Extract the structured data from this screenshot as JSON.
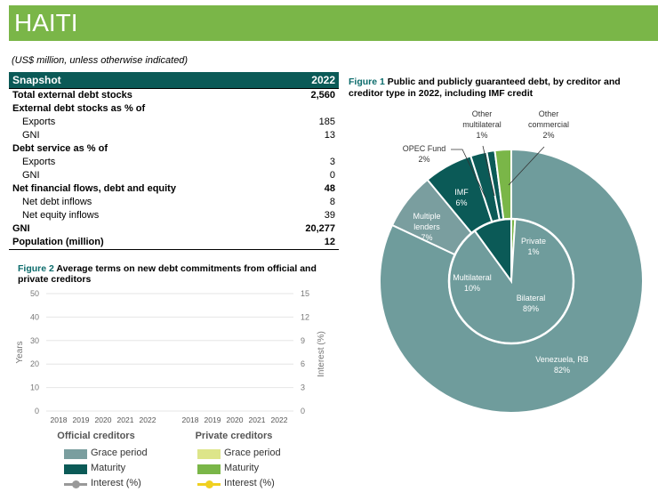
{
  "header": {
    "title": "HAITI"
  },
  "unit_note": "(US$ million, unless otherwise indicated)",
  "snapshot": {
    "title": "Snapshot",
    "year": "2022",
    "rows": [
      {
        "label": "Total external debt stocks",
        "value": "2,560",
        "bold": true,
        "indent": false
      },
      {
        "label": "External debt stocks as % of",
        "value": "",
        "bold": true,
        "indent": false
      },
      {
        "label": "Exports",
        "value": "185",
        "bold": false,
        "indent": true
      },
      {
        "label": "GNI",
        "value": "13",
        "bold": false,
        "indent": true
      },
      {
        "label": "Debt service as % of",
        "value": "",
        "bold": true,
        "indent": false
      },
      {
        "label": "Exports",
        "value": "3",
        "bold": false,
        "indent": true
      },
      {
        "label": "GNI",
        "value": "0",
        "bold": false,
        "indent": true
      },
      {
        "label": "Net financial flows, debt and equity",
        "value": "48",
        "bold": true,
        "indent": false
      },
      {
        "label": "Net debt inflows",
        "value": "8",
        "bold": false,
        "indent": true
      },
      {
        "label": "Net equity inflows",
        "value": "39",
        "bold": false,
        "indent": true
      },
      {
        "label": "GNI",
        "value": "20,277",
        "bold": true,
        "indent": false
      },
      {
        "label": "Population (million)",
        "value": "12",
        "bold": true,
        "indent": false
      }
    ]
  },
  "chart_data": [
    {
      "type": "bar",
      "figure_number": "Figure 2",
      "title": "Average terms on new debt commitments from official and private creditors",
      "ylabel": "Years",
      "y2label": "Interest (%)",
      "ylim": [
        0,
        50
      ],
      "y2lim": [
        0,
        15
      ],
      "yticks": [
        "0",
        "10",
        "20",
        "30",
        "40",
        "50"
      ],
      "y2ticks": [
        "0",
        "3",
        "6",
        "9",
        "12",
        "15"
      ],
      "grid": true,
      "panels": [
        {
          "name": "Official creditors",
          "categories": [
            "2018",
            "2019",
            "2020",
            "2021",
            "2022"
          ]
        },
        {
          "name": "Private creditors",
          "categories": [
            "2018",
            "2019",
            "2020",
            "2021",
            "2022"
          ]
        }
      ],
      "series": [
        {
          "name": "Grace period",
          "group": "Official creditors",
          "values": [],
          "color": "#7a9e9f"
        },
        {
          "name": "Maturity",
          "group": "Official creditors",
          "values": [],
          "color": "#0b5a57"
        },
        {
          "name": "Interest (%)",
          "group": "Official creditors",
          "values": [],
          "color": "#999999"
        },
        {
          "name": "Grace period",
          "group": "Private creditors",
          "values": [],
          "color": "#dde58a"
        },
        {
          "name": "Maturity",
          "group": "Private creditors",
          "values": [],
          "color": "#7ab648"
        },
        {
          "name": "Interest (%)",
          "group": "Private creditors",
          "values": [],
          "color": "#f0d020"
        }
      ]
    },
    {
      "type": "pie",
      "figure_number": "Figure 1",
      "title": "Public and publicly guaranteed debt, by creditor and creditor type in 2022, including IMF credit",
      "inner": [
        {
          "label": "Multilateral",
          "value": 10,
          "display": "10%",
          "color": "#0b5a57"
        },
        {
          "label": "Private",
          "value": 1,
          "display": "1%",
          "color": "#7ab648"
        },
        {
          "label": "Bilateral",
          "value": 89,
          "display": "89%",
          "color": "#6f9c9c"
        }
      ],
      "outer": [
        {
          "label": "Multiple lenders",
          "value": 7,
          "display": "7%",
          "color": "#7a9e9f"
        },
        {
          "label": "IMF",
          "value": 6,
          "display": "6%",
          "color": "#0b5a57"
        },
        {
          "label": "OPEC Fund",
          "value": 2,
          "display": "2%",
          "color": "#0b5a57"
        },
        {
          "label": "Other multilateral",
          "value": 1,
          "display": "1%",
          "color": "#0b5a57"
        },
        {
          "label": "Other commercial",
          "value": 2,
          "display": "2%",
          "color": "#7ab648"
        },
        {
          "label": "Venezuela, RB",
          "value": 82,
          "display": "82%",
          "color": "#6f9c9c"
        }
      ]
    }
  ],
  "legend": {
    "official": [
      {
        "name": "Grace period",
        "color": "#7a9e9f",
        "kind": "box"
      },
      {
        "name": "Maturity",
        "color": "#0b5a57",
        "kind": "box"
      },
      {
        "name": "Interest (%)",
        "color": "#999999",
        "kind": "line"
      }
    ],
    "private": [
      {
        "name": "Grace period",
        "color": "#dde58a",
        "kind": "box"
      },
      {
        "name": "Maturity",
        "color": "#7ab648",
        "kind": "box"
      },
      {
        "name": "Interest (%)",
        "color": "#f0d020",
        "kind": "line"
      }
    ]
  }
}
